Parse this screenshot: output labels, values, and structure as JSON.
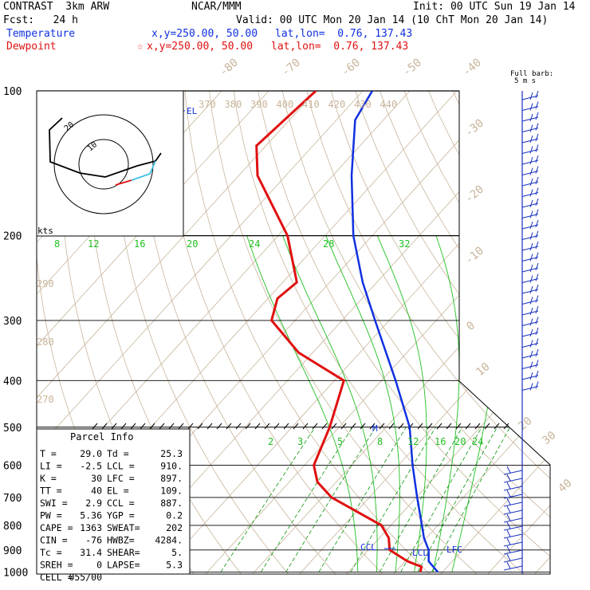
{
  "header": {
    "model": "CONTRAST  3km ARW",
    "center": "NCAR/MMM",
    "init": "Init: 00 UTC Sun 19 Jan 14",
    "fcst": "Fcst:   24 h",
    "valid": "Valid: 00 UTC Mon 20 Jan 14 (10 ChT Mon 20 Jan 14)",
    "temp_label": "Temperature",
    "temp_xy": "x,y=250.00, 50.00",
    "temp_latlon": "lat,lon=  0.76, 137.43",
    "dew_label": "Dewpoint",
    "dew_xy": "x,y=250.00, 50.00",
    "dew_latlon": "lat,lon=  0.76, 137.43",
    "barb_label_1": "Full barb:",
    "barb_label_2": "5 m s"
  },
  "colors": {
    "temperature": "#1030e0",
    "dewpoint": "#e01010",
    "isotherm": "#c8b49a",
    "mixing": "#20a020",
    "moist": "#20c020",
    "barb": "#1830c0",
    "hodo_line": "#000000",
    "hodo_cyan": "#40c0e0"
  },
  "chart_data": {
    "type": "line",
    "pressure_labels": [
      "100",
      "200",
      "300",
      "400",
      "500",
      "600",
      "700",
      "800",
      "900",
      "1000"
    ],
    "temperature_profile": [
      [
        1000,
        29.0
      ],
      [
        950,
        25.0
      ],
      [
        900,
        22.8
      ],
      [
        850,
        19.5
      ],
      [
        800,
        16.6
      ],
      [
        700,
        10.2
      ],
      [
        600,
        3.0
      ],
      [
        500,
        -5.0
      ],
      [
        400,
        -17.0
      ],
      [
        300,
        -33.0
      ],
      [
        250,
        -43.0
      ],
      [
        200,
        -54.0
      ],
      [
        150,
        -66.0
      ],
      [
        115,
        -76.0
      ],
      [
        100,
        -78.0
      ]
    ],
    "dewpoint_profile": [
      [
        1000,
        25.3
      ],
      [
        975,
        24.5
      ],
      [
        950,
        20.5
      ],
      [
        900,
        14.5
      ],
      [
        850,
        12.0
      ],
      [
        800,
        8.0
      ],
      [
        700,
        -8.0
      ],
      [
        650,
        -14.0
      ],
      [
        600,
        -18.0
      ],
      [
        500,
        -22.0
      ],
      [
        400,
        -28.0
      ],
      [
        350,
        -43.0
      ],
      [
        300,
        -55.0
      ],
      [
        270,
        -58.0
      ],
      [
        250,
        -57.0
      ],
      [
        200,
        -68.0
      ],
      [
        150,
        -86.0
      ],
      [
        130,
        -92.0
      ],
      [
        100,
        -90.0
      ]
    ],
    "isotherm_labels": [
      "-80",
      "-70",
      "-60",
      "-50",
      "-40",
      "-30",
      "-20",
      "-10",
      "0",
      "10",
      "20",
      "30",
      "40"
    ],
    "theta_labels": [
      "370",
      "380",
      "390",
      "400",
      "410",
      "420",
      "430",
      "440"
    ],
    "theta_left_labels": [
      "290",
      "280",
      "270"
    ],
    "mixing_labels_upper": [
      "8",
      "12",
      "16",
      "20",
      "24",
      "28",
      "32"
    ],
    "mixing_labels_lower": [
      "2",
      "3",
      "5",
      "8",
      "12",
      "16",
      "20",
      "24"
    ],
    "level_annotations": [
      "EL",
      "LCL",
      "LFC",
      "CCL",
      "M"
    ],
    "wind_barbs_label": "kts",
    "parcel": {
      "title": "Parcel Info",
      "rows": [
        [
          "T  =",
          "29.0",
          "Td =",
          "25.3"
        ],
        [
          "LI =",
          "-2.5",
          "LCL =",
          "910."
        ],
        [
          "K  =",
          "30",
          "LFC =",
          "897."
        ],
        [
          "TT =",
          "40",
          "EL  =",
          "109."
        ],
        [
          "SWI =",
          "2.9",
          "CCL =",
          "887."
        ],
        [
          "PW =",
          "5.36",
          "YGP =",
          "0.2"
        ],
        [
          "CAPE =",
          "1363",
          "SWEAT=",
          "202"
        ],
        [
          "CIN  =",
          "-76",
          "HWBZ=",
          "4284."
        ],
        [
          "Tc =",
          "31.4",
          "SHEAR=",
          "5."
        ],
        [
          "SREH =",
          "0",
          "LAPSE=",
          "5.3"
        ],
        [
          "CELL =",
          "055/00",
          "",
          ""
        ]
      ]
    }
  }
}
